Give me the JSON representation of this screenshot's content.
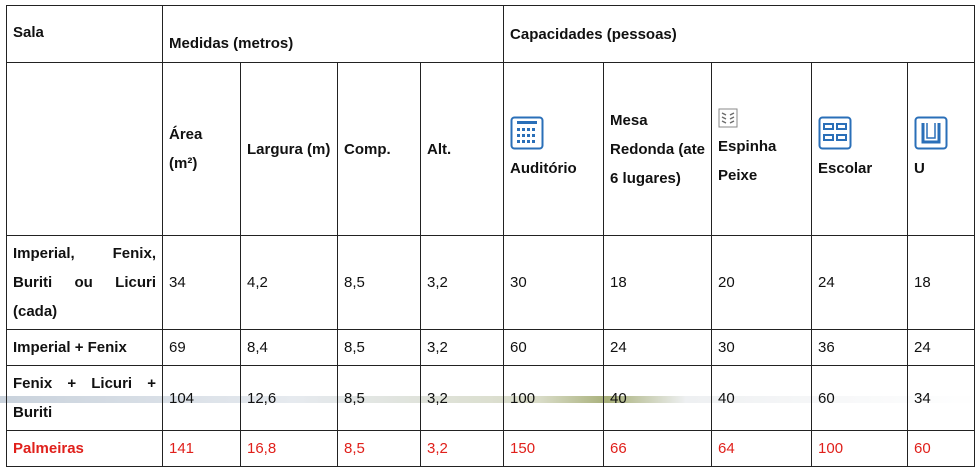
{
  "header": {
    "sala": "Sala",
    "medidas": "Medidas (metros)",
    "capacidades": "Capacidades (pessoas)"
  },
  "columns": {
    "area": "Área (m²)",
    "largura": "Largura (m)",
    "comp": "Comp.",
    "alt": "Alt.",
    "auditorio": "Auditório",
    "mesa": "Mesa Redonda (ate 6 lugares)",
    "espinha": "Espinha Peixe",
    "escolar": "Escolar",
    "u": "U"
  },
  "icons": {
    "auditorio": "auditorium-layout-icon",
    "espinha": "herringbone-layout-icon",
    "escolar": "classroom-layout-icon",
    "u": "u-shape-layout-icon",
    "accent": "#2a6fb8"
  },
  "rows": [
    {
      "sala": "Imperial, Fenix, Buriti ou Licuri (cada)",
      "area": "34",
      "largura": "4,2",
      "comp": "8,5",
      "alt": "3,2",
      "auditorio": "30",
      "mesa": "18",
      "espinha": "20",
      "escolar": "24",
      "u": "18"
    },
    {
      "sala": "Imperial + Fenix",
      "area": "69",
      "largura": "8,4",
      "comp": "8,5",
      "alt": "3,2",
      "auditorio": "60",
      "mesa": "24",
      "espinha": "30",
      "escolar": "36",
      "u": "24"
    },
    {
      "sala": "Fenix + Licuri + Buriti",
      "area": "104",
      "largura": "12,6",
      "comp": "8,5",
      "alt": "3,2",
      "auditorio": "100",
      "mesa": "40",
      "espinha": "40",
      "escolar": "60",
      "u": "34"
    },
    {
      "sala": "Palmeiras",
      "area": "141",
      "largura": "16,8",
      "comp": "8,5",
      "alt": "3,2",
      "auditorio": "150",
      "mesa": "66",
      "espinha": "64",
      "escolar": "100",
      "u": "60"
    }
  ],
  "colors": {
    "highlight_row": "#e0201b",
    "border": "#222222"
  }
}
